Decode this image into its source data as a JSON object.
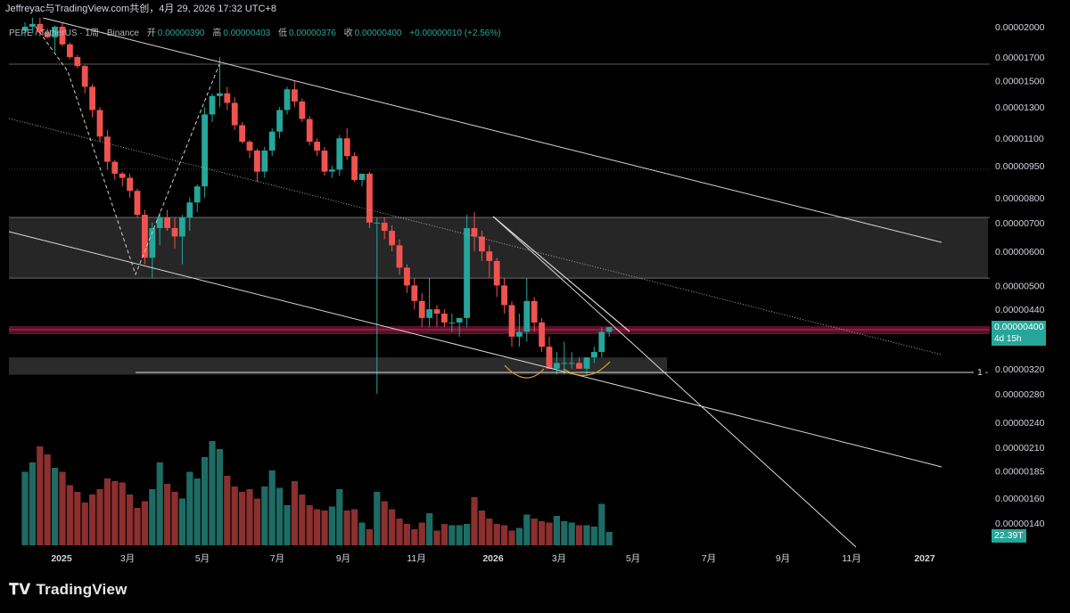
{
  "header": {
    "caption": "Jeffreyac与TradingView.com共创，4月 29, 2026 17:32 UTC+8",
    "symbol": "PEPE / TetherUS · 1周 · Binance",
    "open_label": "开",
    "open": "0.00000390",
    "high_label": "高",
    "high": "0.00000403",
    "low_label": "低",
    "low": "0.00000376",
    "close_label": "收",
    "close": "0.00000400",
    "change": "+0.00000010 (+2.56%)"
  },
  "price_tag": {
    "price": "0.00000400",
    "countdown": "4d 15h"
  },
  "volume_tag": "22.39T",
  "marker_label": "1 -",
  "branding": {
    "logo_text": "TradingView"
  },
  "colors": {
    "up": "#26a69a",
    "down": "#ef5350",
    "up_volume": "#1e6b64",
    "down_volume": "#8b2f2f",
    "zone": "#2a2a2a",
    "resistance": "#b0234f",
    "arrow": "#d9a42a"
  },
  "chart_data": {
    "type": "candlestick",
    "scale": "log",
    "ylim": [
      1.18e-06,
      2.1e-06
    ],
    "y_ticks": [
      "0.00002000",
      "0.00001700",
      "0.00001500",
      "0.00001300",
      "0.00001100",
      "0.00000950",
      "0.00000800",
      "0.00000700",
      "0.00000600",
      "0.00000500",
      "0.00000440",
      "0.00000320",
      "0.00000280",
      "0.00000240",
      "0.00000210",
      "0.00000185",
      "0.00000160",
      "0.00000140"
    ],
    "x_ticks": [
      "2025",
      "3月",
      "5月",
      "7月",
      "9月",
      "11月",
      "2026",
      "3月",
      "5月",
      "7月",
      "9月",
      "11月",
      "2027"
    ],
    "candle_o": [
      1.96e-05,
      2e-05,
      2.03e-05,
      1.94e-05,
      1.89e-05,
      2e-05,
      1.82e-05,
      1.7e-05,
      1.62e-05,
      1.45e-05,
      1.28e-05,
      1.11e-05,
      9.7e-06,
      9.1e-06,
      8.9e-06,
      8.3e-06,
      7.3e-06,
      5.8e-06,
      6.8e-06,
      7.2e-06,
      6.8e-06,
      6.5e-06,
      7.2e-06,
      7.8e-06,
      8.5e-06,
      1.25e-05,
      1.38e-05,
      1.4e-05,
      1.33e-05,
      1.18e-05,
      1.08e-05,
      1.03e-05,
      9.2e-06,
      1.03e-05,
      1.14e-05,
      1.28e-05,
      1.43e-05,
      1.34e-05,
      1.22e-05,
      1.08e-05,
      1.03e-05,
      9.2e-06,
      9.3e-06,
      1.1e-05,
      1e-05,
      8.8e-06,
      9.1e-06,
      7e-06,
      7e-06,
      6.7e-06,
      6.2e-06,
      5.5e-06,
      5e-06,
      4.6e-06,
      4.2e-06,
      4.4e-06,
      4.3e-06,
      4.1e-06,
      4.1e-06,
      4.2e-06,
      6.8e-06,
      6.5e-06,
      6e-06,
      5.7e-06,
      5e-06,
      4.5e-06,
      3.8e-06,
      3.9e-06,
      4.6e-06,
      4.1e-06,
      3.6e-06,
      3.2e-06,
      3.3e-06,
      3.3e-06,
      3.3e-06,
      3.2e-06,
      3.4e-06,
      3.5e-06,
      3.9e-06
    ],
    "candle_h": [
      2.05e-05,
      2.1e-05,
      2.1e-05,
      1.98e-05,
      2.01e-05,
      2.05e-05,
      1.84e-05,
      1.72e-05,
      1.63e-05,
      1.47e-05,
      1.3e-05,
      1.15e-05,
      9.8e-06,
      9.2e-06,
      9.1e-06,
      8.4e-06,
      7.5e-06,
      7e-06,
      7.4e-06,
      7.5e-06,
      7.2e-06,
      7.3e-06,
      8e-06,
      8.6e-06,
      1.3e-05,
      1.4e-05,
      1.7e-05,
      1.45e-05,
      1.37e-05,
      1.2e-05,
      1.09e-05,
      1.04e-05,
      1.05e-05,
      1.16e-05,
      1.3e-05,
      1.45e-05,
      1.5e-05,
      1.36e-05,
      1.24e-05,
      1.1e-05,
      1.05e-05,
      9.5e-06,
      1.12e-05,
      1.16e-05,
      1.02e-05,
      9e-06,
      9.2e-06,
      7.2e-06,
      7.2e-06,
      6.9e-06,
      6.4e-06,
      5.6e-06,
      5.2e-06,
      4.8e-06,
      5.2e-06,
      4.5e-06,
      4.4e-06,
      4.3e-06,
      4.2e-06,
      7.3e-06,
      7.4e-06,
      6.7e-06,
      6.2e-06,
      5.8e-06,
      5.2e-06,
      4.6e-06,
      4.3e-06,
      5.2e-06,
      4.7e-06,
      4.2e-06,
      3.8e-06,
      3.5e-06,
      3.7e-06,
      3.5e-06,
      3.4e-06,
      3.4e-06,
      3.6e-06,
      4e-06,
      4e-06
    ],
    "candle_l": [
      1.9e-05,
      1.93e-05,
      1.9e-05,
      1.88e-05,
      1.75e-05,
      1.8e-05,
      1.68e-05,
      1.6e-05,
      1.4e-05,
      1.23e-05,
      1.08e-05,
      9.3e-06,
      8.8e-06,
      8.5e-06,
      8e-06,
      7.2e-06,
      5.6e-06,
      5.2e-06,
      6.2e-06,
      6.7e-06,
      6.1e-06,
      5.6e-06,
      6.7e-06,
      7.4e-06,
      8e-06,
      1.2e-05,
      1.3e-05,
      1.28e-05,
      1.15e-05,
      1.07e-05,
      9.9e-06,
      8.7e-06,
      8.9e-06,
      1e-05,
      1.1e-05,
      1.25e-05,
      1.3e-05,
      1.2e-05,
      1.06e-05,
      1e-05,
      9e-06,
      8.9e-06,
      9e-06,
      9.8e-06,
      8.7e-06,
      8.5e-06,
      6.8e-06,
      2.8e-06,
      6.4e-06,
      6e-06,
      5.3e-06,
      4.8e-06,
      4.4e-06,
      4e-06,
      4e-06,
      4e-06,
      4e-06,
      3.9e-06,
      3.8e-06,
      4e-06,
      6e-06,
      5.7e-06,
      5.2e-06,
      4.7e-06,
      4.3e-06,
      3.6e-06,
      3.6e-06,
      3.7e-06,
      3.9e-06,
      3.5e-06,
      3.2e-06,
      3.1e-06,
      3.1e-06,
      3.2e-06,
      3.2e-06,
      3.1e-06,
      3.3e-06,
      3.4e-06,
      3.8e-06
    ],
    "candle_c": [
      2e-05,
      2.03e-05,
      1.94e-05,
      1.89e-05,
      2e-05,
      1.82e-05,
      1.7e-05,
      1.62e-05,
      1.45e-05,
      1.28e-05,
      1.11e-05,
      9.7e-06,
      9.1e-06,
      8.9e-06,
      8.3e-06,
      7.3e-06,
      5.8e-06,
      6.8e-06,
      7.2e-06,
      6.8e-06,
      6.5e-06,
      7.2e-06,
      7.8e-06,
      8.5e-06,
      1.25e-05,
      1.38e-05,
      1.4e-05,
      1.33e-05,
      1.18e-05,
      1.08e-05,
      1.03e-05,
      9.2e-06,
      1.03e-05,
      1.14e-05,
      1.28e-05,
      1.43e-05,
      1.34e-05,
      1.22e-05,
      1.08e-05,
      1.03e-05,
      9.2e-06,
      9.3e-06,
      1.1e-05,
      1e-05,
      8.8e-06,
      9.1e-06,
      7e-06,
      7e-06,
      6.7e-06,
      6.2e-06,
      5.5e-06,
      5e-06,
      4.6e-06,
      4.2e-06,
      4.4e-06,
      4.3e-06,
      4.1e-06,
      4.1e-06,
      4.2e-06,
      6.8e-06,
      6.5e-06,
      6e-06,
      5.7e-06,
      5e-06,
      4.5e-06,
      3.8e-06,
      3.9e-06,
      4.6e-06,
      4.1e-06,
      3.6e-06,
      3.2e-06,
      3.3e-06,
      3.3e-06,
      3.3e-06,
      3.2e-06,
      3.4e-06,
      3.5e-06,
      3.9e-06,
      4e-06
    ],
    "volume_rel": [
      0.55,
      0.62,
      0.74,
      0.68,
      0.58,
      0.55,
      0.45,
      0.4,
      0.32,
      0.38,
      0.42,
      0.5,
      0.48,
      0.47,
      0.38,
      0.28,
      0.33,
      0.42,
      0.62,
      0.46,
      0.4,
      0.35,
      0.55,
      0.5,
      0.66,
      0.78,
      0.72,
      0.52,
      0.44,
      0.4,
      0.42,
      0.35,
      0.44,
      0.56,
      0.43,
      0.3,
      0.48,
      0.38,
      0.3,
      0.27,
      0.26,
      0.29,
      0.42,
      0.26,
      0.27,
      0.17,
      0.12,
      0.4,
      0.33,
      0.27,
      0.2,
      0.16,
      0.12,
      0.17,
      0.24,
      0.11,
      0.16,
      0.15,
      0.15,
      0.16,
      0.36,
      0.26,
      0.2,
      0.16,
      0.15,
      0.11,
      0.13,
      0.23,
      0.2,
      0.18,
      0.17,
      0.22,
      0.18,
      0.17,
      0.15,
      0.15,
      0.14,
      0.31,
      0.1
    ]
  }
}
